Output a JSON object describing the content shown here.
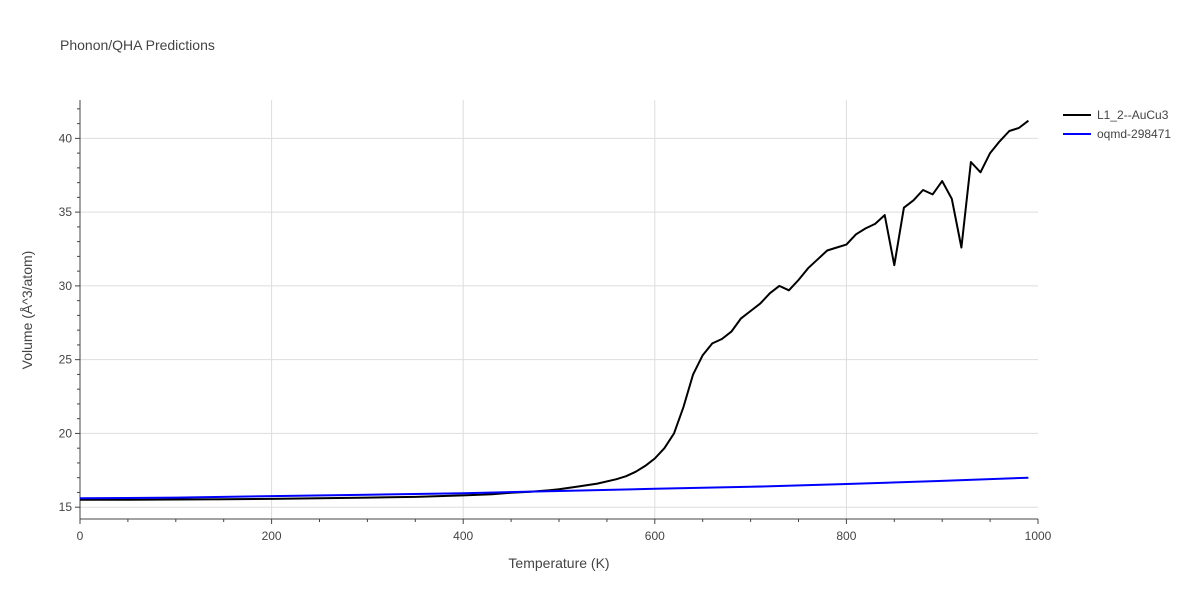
{
  "chart_data": {
    "type": "line",
    "title": "Phonon/QHA Predictions",
    "xlabel": "Temperature (K)",
    "ylabel": "Volume (Å^3/atom)",
    "xlim": [
      0,
      1000
    ],
    "ylim": [
      14.2,
      42.6
    ],
    "xticks": [
      0,
      200,
      400,
      600,
      800,
      1000
    ],
    "yticks": [
      15,
      20,
      25,
      30,
      35,
      40
    ],
    "grid": true,
    "legend_position": "top-right",
    "series": [
      {
        "name": "L1_2--AuCu3",
        "color": "#000000",
        "x": [
          0,
          50,
          100,
          150,
          200,
          250,
          300,
          350,
          400,
          430,
          450,
          470,
          490,
          500,
          520,
          540,
          560,
          570,
          580,
          590,
          600,
          610,
          620,
          630,
          640,
          650,
          660,
          670,
          680,
          690,
          700,
          710,
          720,
          730,
          740,
          750,
          760,
          770,
          780,
          790,
          800,
          810,
          820,
          830,
          840,
          850,
          860,
          870,
          880,
          890,
          900,
          910,
          920,
          930,
          940,
          950,
          960,
          970,
          980,
          990
        ],
        "y": [
          15.5,
          15.5,
          15.52,
          15.54,
          15.56,
          15.6,
          15.65,
          15.7,
          15.8,
          15.88,
          15.98,
          16.05,
          16.15,
          16.22,
          16.4,
          16.6,
          16.9,
          17.1,
          17.4,
          17.8,
          18.3,
          19.0,
          20.0,
          21.8,
          24.0,
          25.3,
          26.1,
          26.4,
          26.9,
          27.8,
          28.3,
          28.8,
          29.5,
          30.0,
          29.7,
          30.4,
          31.2,
          31.8,
          32.4,
          32.6,
          32.8,
          33.5,
          33.9,
          34.2,
          34.8,
          31.4,
          35.3,
          35.8,
          36.5,
          36.2,
          37.1,
          35.9,
          32.6,
          38.4,
          37.7,
          39.0,
          39.8,
          40.5,
          40.7,
          41.2
        ]
      },
      {
        "name": "oqmd-298471",
        "color": "#0000ff",
        "x": [
          0,
          100,
          200,
          300,
          400,
          500,
          600,
          700,
          800,
          900,
          990
        ],
        "y": [
          15.6,
          15.65,
          15.75,
          15.85,
          15.95,
          16.1,
          16.25,
          16.38,
          16.57,
          16.78,
          17.0
        ]
      }
    ]
  }
}
